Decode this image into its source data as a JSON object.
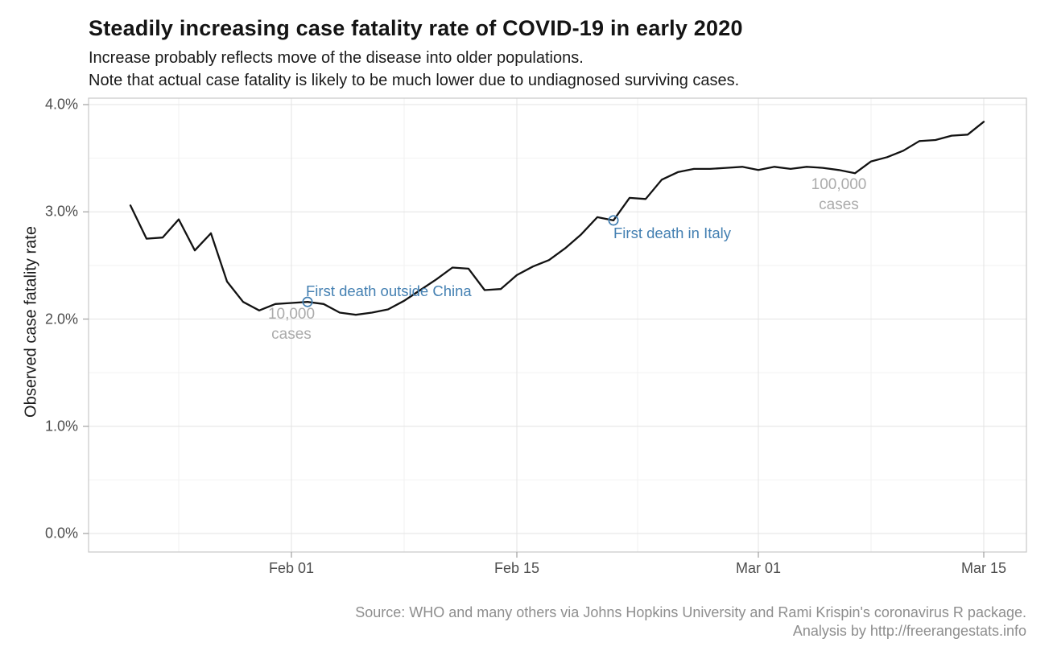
{
  "chart_data": {
    "type": "line",
    "title": "Steadily increasing case fatality rate of COVID-19 in early 2020",
    "subtitle_lines": [
      "Increase probably reflects move of the disease into older populations.",
      "Note that actual case fatality is likely to be much lower due to undiagnosed surviving cases."
    ],
    "ylabel": "Observed case fatality rate",
    "xlabel": "",
    "legend": "none",
    "grid": "major and minor gridlines, light gray on white, full panel border",
    "ylim_pct": [
      0.0,
      4.0
    ],
    "x": [
      "Jan 22",
      "Jan 23",
      "Jan 24",
      "Jan 25",
      "Jan 26",
      "Jan 27",
      "Jan 28",
      "Jan 29",
      "Jan 30",
      "Jan 31",
      "Feb 01",
      "Feb 02",
      "Feb 03",
      "Feb 04",
      "Feb 05",
      "Feb 06",
      "Feb 07",
      "Feb 08",
      "Feb 09",
      "Feb 10",
      "Feb 11",
      "Feb 12",
      "Feb 13",
      "Feb 14",
      "Feb 15",
      "Feb 16",
      "Feb 17",
      "Feb 18",
      "Feb 19",
      "Feb 20",
      "Feb 21",
      "Feb 22",
      "Feb 23",
      "Feb 24",
      "Feb 25",
      "Feb 26",
      "Feb 27",
      "Feb 28",
      "Feb 29",
      "Mar 01",
      "Mar 02",
      "Mar 03",
      "Mar 04",
      "Mar 05",
      "Mar 06",
      "Mar 07",
      "Mar 08",
      "Mar 09",
      "Mar 10",
      "Mar 11",
      "Mar 12",
      "Mar 13",
      "Mar 14",
      "Mar 15"
    ],
    "series": [
      {
        "name": "Observed case fatality rate (%)",
        "values": [
          3.06,
          2.75,
          2.76,
          2.93,
          2.64,
          2.8,
          2.35,
          2.16,
          2.08,
          2.14,
          2.15,
          2.16,
          2.14,
          2.06,
          2.04,
          2.06,
          2.09,
          2.17,
          2.27,
          2.37,
          2.48,
          2.47,
          2.27,
          2.28,
          2.41,
          2.49,
          2.55,
          2.66,
          2.79,
          2.95,
          2.92,
          3.13,
          3.12,
          3.3,
          3.37,
          3.4,
          3.4,
          3.41,
          3.42,
          3.39,
          3.42,
          3.4,
          3.42,
          3.41,
          3.39,
          3.36,
          3.47,
          3.51,
          3.57,
          3.66,
          3.67,
          3.71,
          3.72,
          3.84
        ]
      }
    ],
    "y_ticks": [
      {
        "label": "0.0%",
        "value": 0
      },
      {
        "label": "1.0%",
        "value": 1
      },
      {
        "label": "2.0%",
        "value": 2
      },
      {
        "label": "3.0%",
        "value": 3
      },
      {
        "label": "4.0%",
        "value": 4
      }
    ],
    "y_minor_ticks": [
      0.5,
      1.5,
      2.5,
      3.5
    ],
    "x_ticks": [
      "Feb 01",
      "Feb 15",
      "Mar 01",
      "Mar 15"
    ],
    "annotations": [
      {
        "id": "event-first-death-outside-china",
        "kind": "event",
        "label": "First death outside China",
        "date": "Feb 02",
        "value_pct": 2.16
      },
      {
        "id": "event-first-death-italy",
        "kind": "event",
        "label": "First death in Italy",
        "date": "Feb 21",
        "value_pct": 2.92
      },
      {
        "id": "milestone-10k",
        "kind": "milestone",
        "lines": [
          "10,000",
          "cases"
        ],
        "date": "Feb 01"
      },
      {
        "id": "milestone-100k",
        "kind": "milestone",
        "lines": [
          "100,000",
          "cases"
        ],
        "date": "Mar 06"
      }
    ],
    "caption_lines": [
      "Source: WHO and many others via Johns Hopkins University and Rami Krispin's coronavirus R package.",
      "Analysis by http://freerangestats.info"
    ],
    "colors": {
      "line": "#121212",
      "event_annotation": "#4480B2",
      "milestone_annotation": "#ababab",
      "grid_major": "#e3e3e3",
      "grid_minor": "#f2f2f2",
      "panel_border": "#c8c8c8",
      "axis_tick": "#a0a0a0",
      "tick_label": "#4d4d4d",
      "caption": "#8e8e8e"
    }
  }
}
